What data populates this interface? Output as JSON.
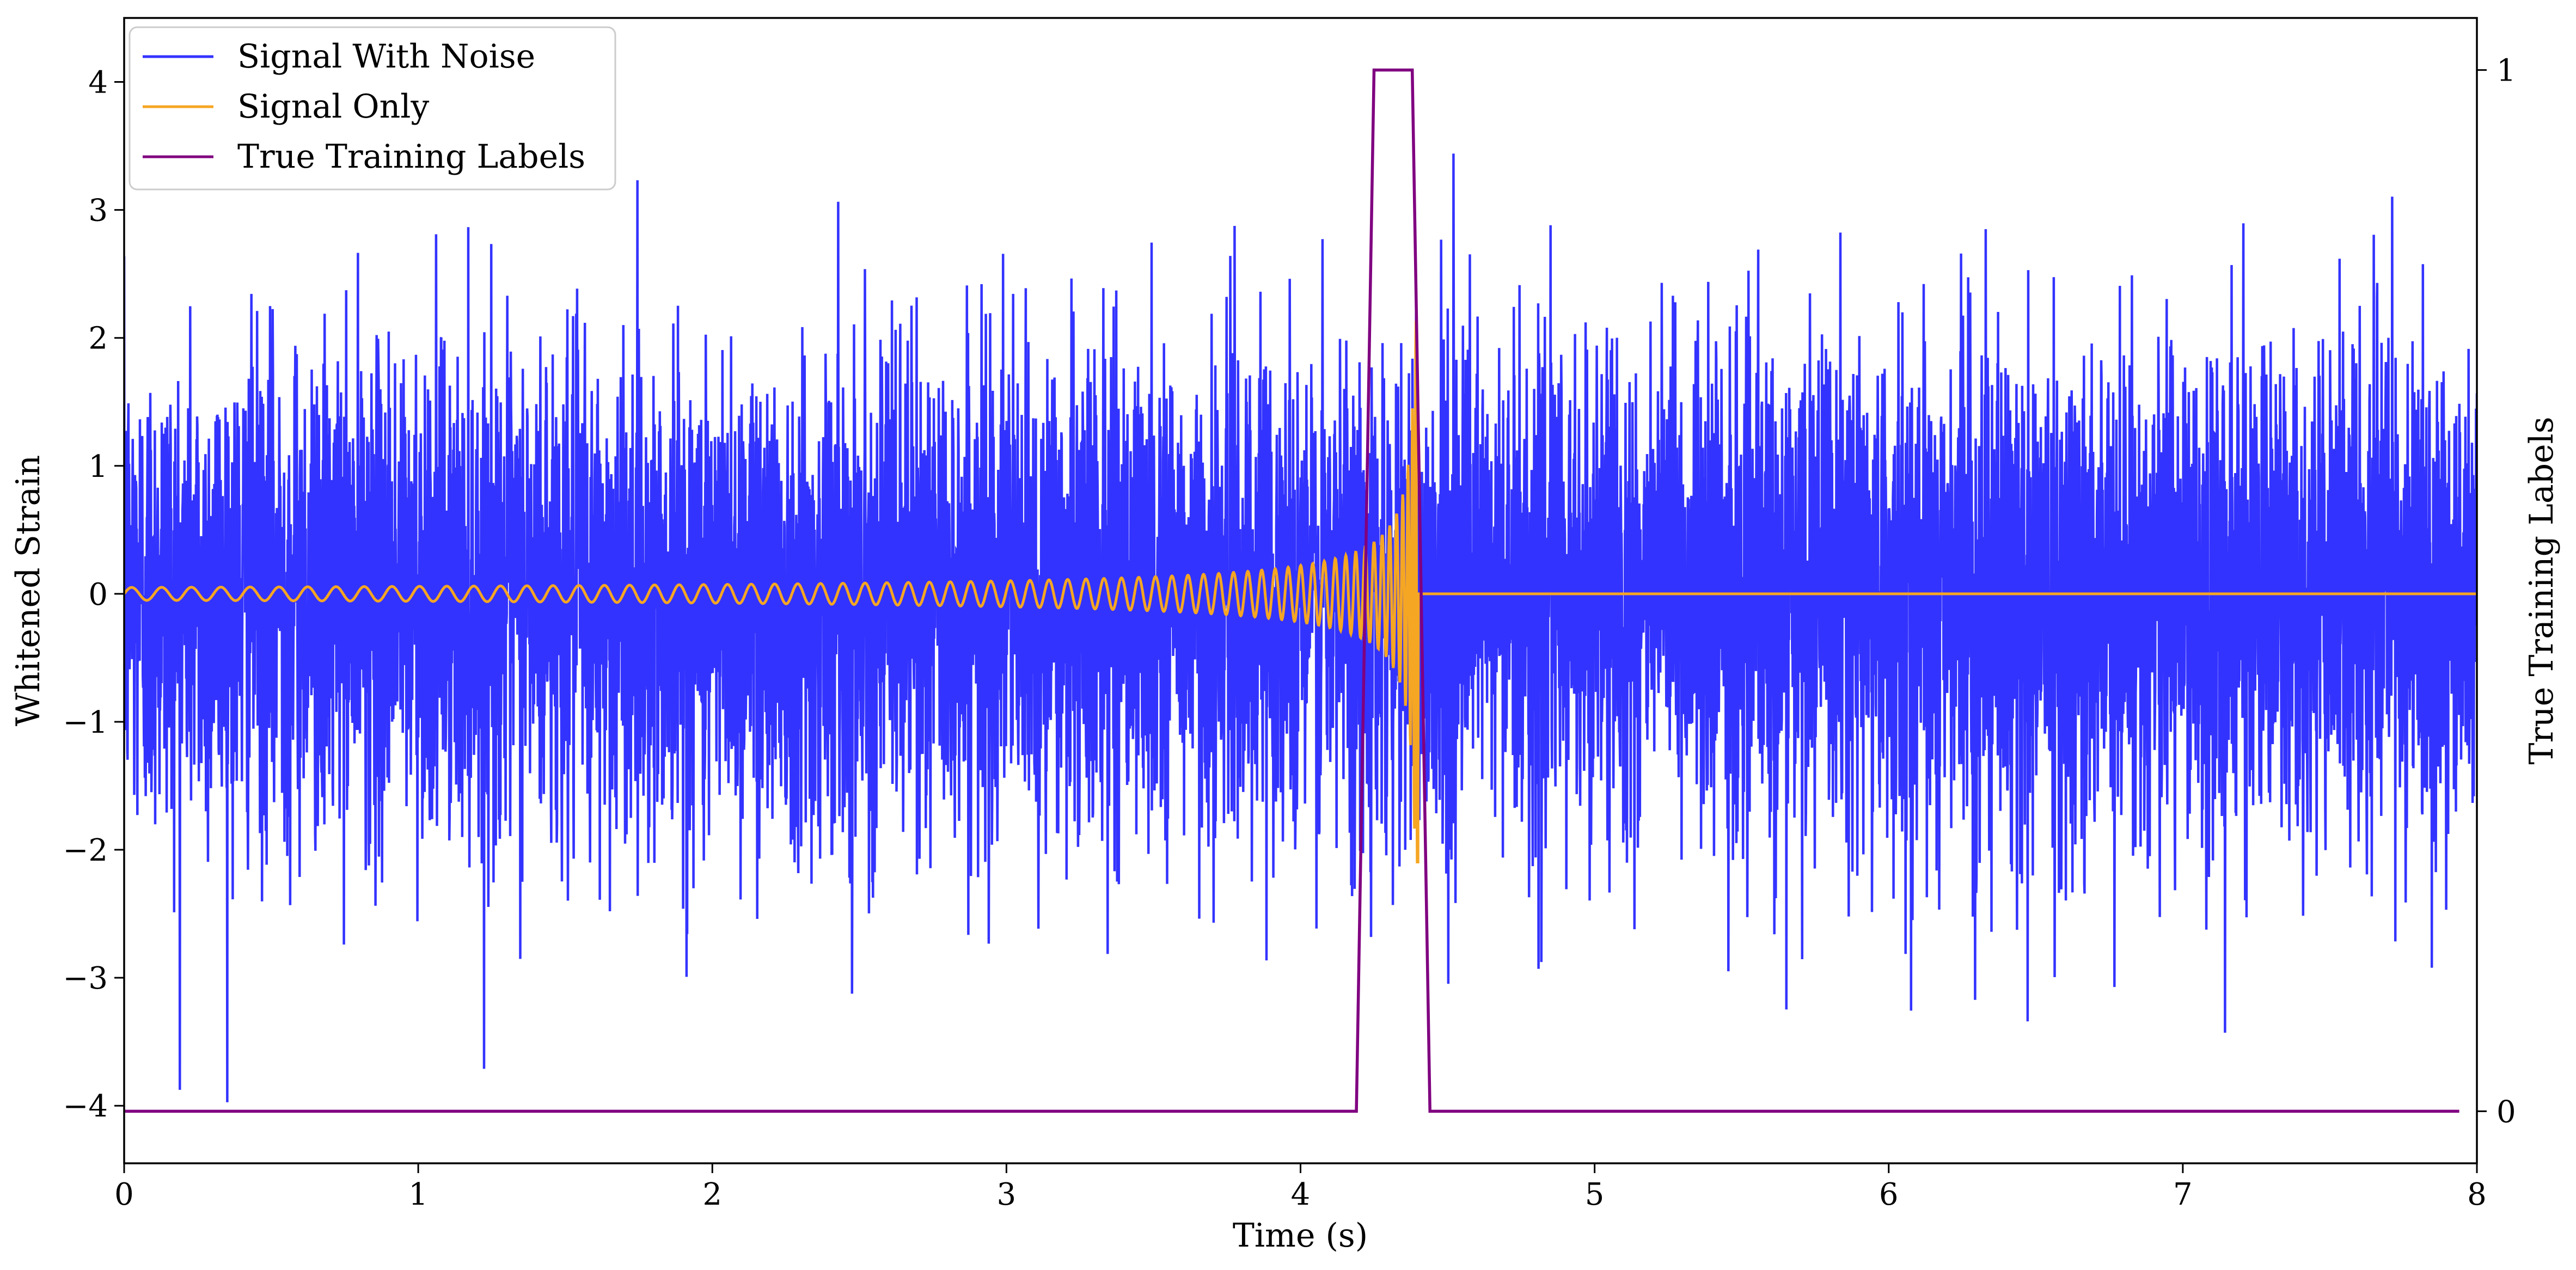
{
  "chart_data": {
    "type": "line",
    "title": "",
    "xlabel": "Time (s)",
    "ylabel": "Whitened Strain",
    "y2label": "True Training Labels",
    "xlim": [
      0,
      8
    ],
    "ylim": [
      -4.45,
      4.5
    ],
    "y2lim": [
      -0.05,
      1.05
    ],
    "xticks": [
      0,
      1,
      2,
      3,
      4,
      5,
      6,
      7,
      8
    ],
    "yticks": [
      -4,
      -3,
      -2,
      -1,
      0,
      1,
      2,
      3,
      4
    ],
    "y2ticks": [
      0,
      1
    ],
    "ytick_labels": [
      "−4",
      "−3",
      "−2",
      "−1",
      "0",
      "1",
      "2",
      "3",
      "4"
    ],
    "legend_position": "top-left",
    "grid": false,
    "series": [
      {
        "name": "Signal With Noise",
        "color": "#3333ff",
        "axis": "left",
        "description_samples": 8192,
        "noise_std": 1.0,
        "spike_range": [
          -4.05,
          3.6
        ]
      },
      {
        "name": "Signal Only",
        "color": "#f5a623",
        "axis": "left",
        "chirp": {
          "start": 0.0,
          "merger": 4.4,
          "start_amplitude": 0.05,
          "peak_amplitude": 2.25
        }
      },
      {
        "name": "True Training Labels",
        "color": "#800080",
        "axis": "right",
        "x": [
          0,
          4.19,
          4.25,
          4.38,
          4.44,
          7.94
        ],
        "y": [
          0,
          0,
          1,
          1,
          0,
          0
        ]
      }
    ]
  }
}
